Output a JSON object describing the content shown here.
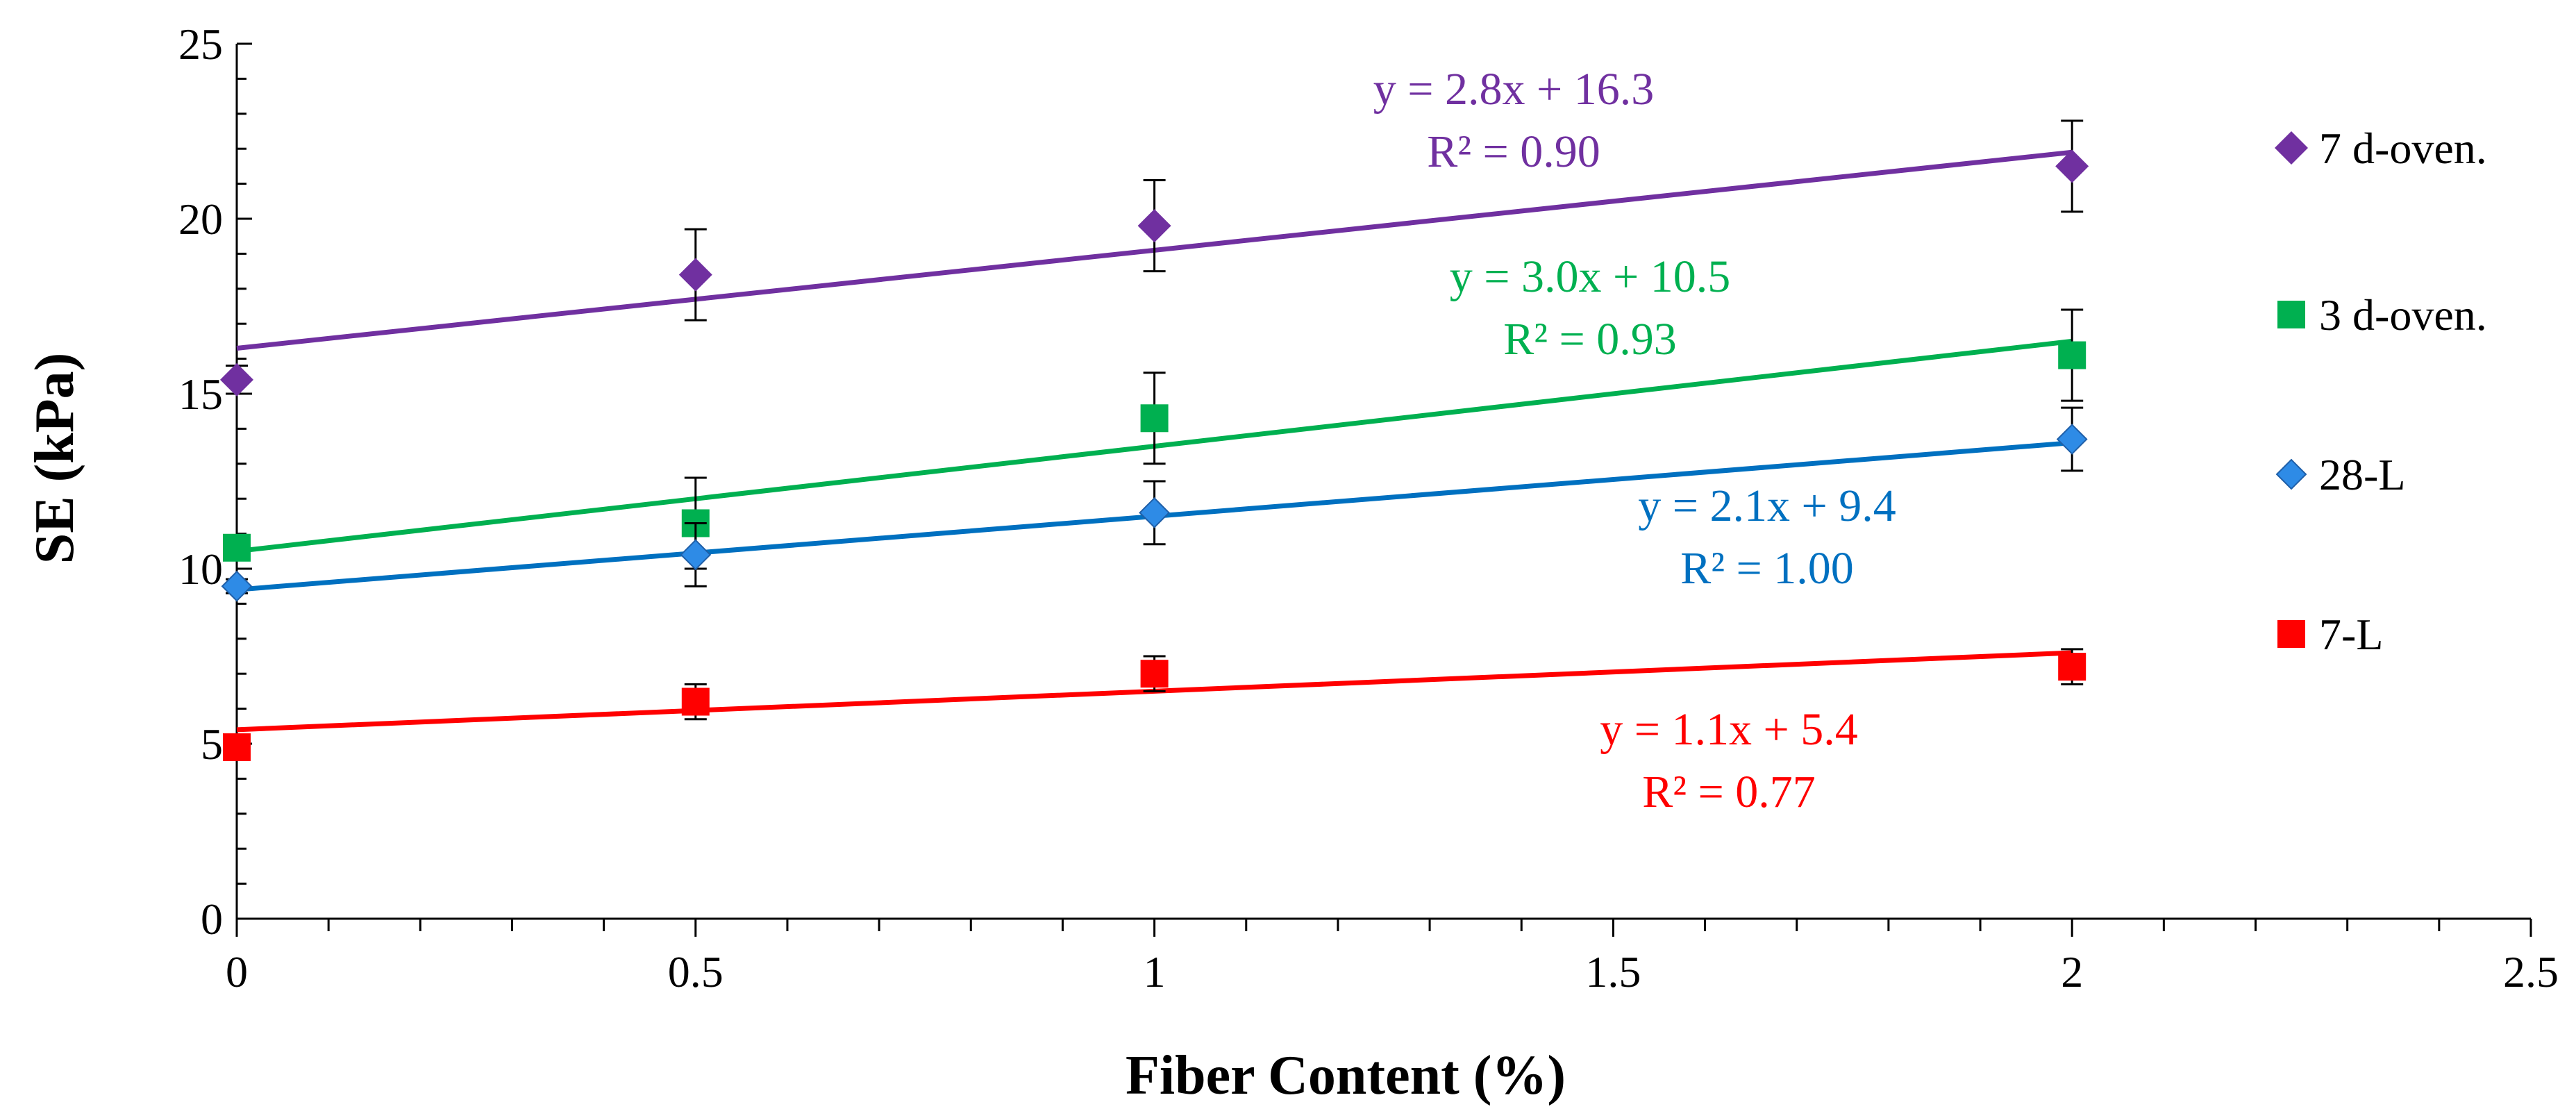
{
  "chart_data": {
    "type": "scatter",
    "title": "",
    "xlabel": "Fiber Content (%)",
    "ylabel": "SE (kPa)",
    "xlim": [
      0,
      2.5
    ],
    "ylim": [
      0,
      25
    ],
    "xticks": [
      "0",
      "0.5",
      "1",
      "1.5",
      "2",
      "2.5"
    ],
    "yticks": [
      "0",
      "5",
      "10",
      "15",
      "20",
      "25"
    ],
    "grid": false,
    "legend_position": "right",
    "series": [
      {
        "name": "7 d-oven.",
        "marker": "diamond",
        "color": "#7030A0",
        "x": [
          0,
          0.5,
          1,
          2
        ],
        "y": [
          15.4,
          18.4,
          19.8,
          21.5
        ],
        "err": [
          0.4,
          1.3,
          1.3,
          1.3
        ],
        "fit": {
          "slope": 2.8,
          "intercept": 16.3
        },
        "equation": "y = 2.8x + 16.3",
        "r2": "R² = 0.90"
      },
      {
        "name": "3 d-oven.",
        "marker": "square",
        "color": "#00B050",
        "x": [
          0,
          0.5,
          1,
          2
        ],
        "y": [
          10.6,
          11.3,
          14.3,
          16.1
        ],
        "err": [
          0.3,
          1.3,
          1.3,
          1.3
        ],
        "fit": {
          "slope": 3.0,
          "intercept": 10.5
        },
        "equation": "y = 3.0x + 10.5",
        "r2": "R² = 0.93"
      },
      {
        "name": "28-L",
        "marker": "diamond-small",
        "color": "#2E8BE6",
        "line_color": "#0070C0",
        "x": [
          0,
          0.5,
          1,
          2
        ],
        "y": [
          9.5,
          10.4,
          11.6,
          13.7
        ],
        "err": [
          0.2,
          0.9,
          0.9,
          0.9
        ],
        "fit": {
          "slope": 2.1,
          "intercept": 9.4
        },
        "equation": "y = 2.1x + 9.4",
        "r2": "R² = 1.00"
      },
      {
        "name": "7-L",
        "marker": "square",
        "color": "#FF0000",
        "x": [
          0,
          0.5,
          1,
          2
        ],
        "y": [
          4.9,
          6.2,
          7.0,
          7.2
        ],
        "err": [
          0.3,
          0.5,
          0.5,
          0.5
        ],
        "fit": {
          "slope": 1.1,
          "intercept": 5.4
        },
        "equation": "y = 1.1x + 5.4",
        "r2": "R² = 0.77"
      }
    ]
  }
}
